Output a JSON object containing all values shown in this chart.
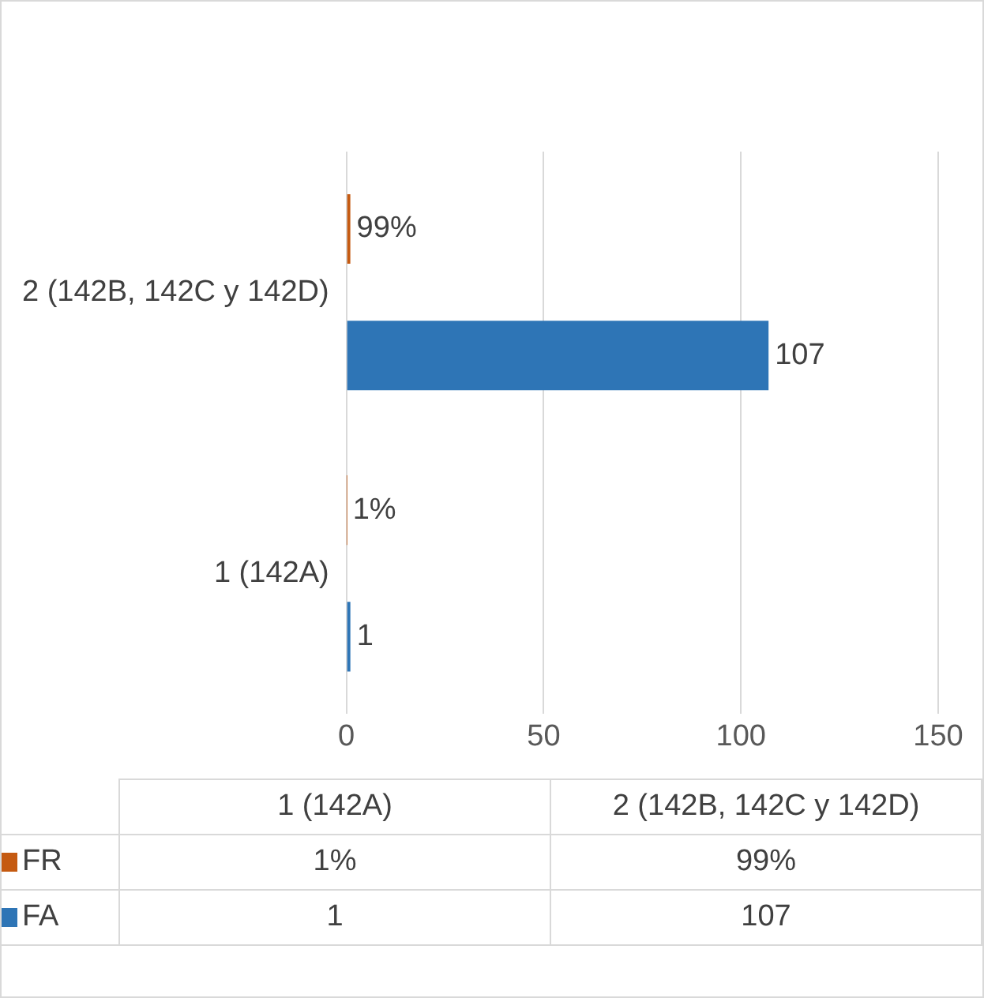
{
  "chart_data": {
    "type": "bar",
    "orientation": "horizontal",
    "categories": [
      "2 (142B, 142C y 142D)",
      "1 (142A)"
    ],
    "series": [
      {
        "name": "FR",
        "color": "#c55a11",
        "values": [
          0.99,
          0.01
        ],
        "value_labels": [
          "99%",
          "1%"
        ]
      },
      {
        "name": "FA",
        "color": "#2e75b6",
        "values": [
          107,
          1
        ],
        "value_labels": [
          "107",
          "1"
        ]
      }
    ],
    "xlim": [
      0,
      150
    ],
    "xticks": [
      0,
      50,
      100,
      150
    ],
    "grid": "x",
    "legend": "bottom"
  }
}
